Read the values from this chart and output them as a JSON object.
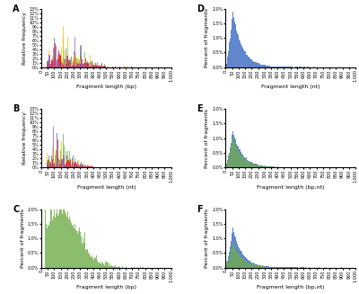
{
  "panels": {
    "A": {
      "label": "A",
      "ylabel": "Relative frequency",
      "xlabel": "Fragment length (bp)",
      "ylim": [
        0,
        0.13
      ],
      "yticks": [
        0.0,
        0.01,
        0.02,
        0.03,
        0.04,
        0.05,
        0.06,
        0.07,
        0.08,
        0.09,
        0.1,
        0.11,
        0.12,
        0.13
      ],
      "ytick_labels": [
        "0%",
        "1%",
        "2%",
        "3%",
        "4%",
        "5%",
        "6%",
        "7%",
        "8%",
        "9%",
        "10%",
        "11%",
        "12%",
        "13%"
      ],
      "colors": [
        "#4472C4",
        "#70AD47",
        "#FFC000",
        "#FF0000",
        "#9B59B6"
      ]
    },
    "B": {
      "label": "B",
      "ylabel": "Relative frequency",
      "xlabel": "Fragment length (nt)",
      "ylim": [
        0,
        0.13
      ],
      "yticks": [
        0.0,
        0.01,
        0.02,
        0.03,
        0.04,
        0.05,
        0.06,
        0.07,
        0.08,
        0.09,
        0.1,
        0.11,
        0.12,
        0.13
      ],
      "ytick_labels": [
        "0%",
        "1%",
        "2%",
        "3%",
        "4%",
        "5%",
        "6%",
        "7%",
        "8%",
        "9%",
        "10%",
        "11%",
        "12%",
        "13%"
      ],
      "colors": [
        "#4472C4",
        "#70AD47",
        "#FFC000",
        "#FF0000",
        "#9B59B6"
      ]
    },
    "C": {
      "label": "C",
      "ylabel": "Percent of fragments",
      "xlabel": "Fragment length (bp)",
      "ylim": [
        0,
        0.02
      ],
      "yticks": [
        0.0,
        0.005,
        0.01,
        0.015,
        0.02
      ],
      "ytick_labels": [
        "0.0%",
        "0.5%",
        "1.0%",
        "1.5%",
        "2.0%"
      ],
      "color": "#70AD47"
    },
    "D": {
      "label": "D",
      "ylabel": "Percent of fragments",
      "xlabel": "Fragment length (nt)",
      "ylim": [
        0,
        0.02
      ],
      "yticks": [
        0.0,
        0.005,
        0.01,
        0.015,
        0.02
      ],
      "ytick_labels": [
        "0.0%",
        "0.5%",
        "1.0%",
        "1.5%",
        "2.0%"
      ],
      "color": "#4472C4"
    },
    "E": {
      "label": "E",
      "ylabel": "Percent of fragments",
      "xlabel": "Fragment length (bp,nt)",
      "ylim": [
        0,
        0.02
      ],
      "yticks": [
        0.0,
        0.005,
        0.01,
        0.015,
        0.02
      ],
      "ytick_labels": [
        "0.0%",
        "0.5%",
        "1.0%",
        "1.5%",
        "2.0%"
      ],
      "colors": [
        "#4472C4",
        "#70AD47"
      ]
    },
    "F": {
      "label": "F",
      "ylabel": "Percent of fragments",
      "xlabel": "Fragment length (bp,nt)",
      "ylim": [
        0,
        0.02
      ],
      "yticks": [
        0.0,
        0.005,
        0.01,
        0.015,
        0.02
      ],
      "ytick_labels": [
        "0.0%",
        "0.5%",
        "1.0%",
        "1.5%",
        "2.0%"
      ],
      "colors": [
        "#4472C4",
        "#70AD47"
      ]
    }
  },
  "xtick_positions": [
    0,
    50,
    100,
    150,
    200,
    250,
    300,
    350,
    400,
    450,
    500,
    550,
    600,
    650,
    700,
    750,
    800,
    850,
    900,
    950,
    1000
  ],
  "xtick_labels": [
    "0",
    "50",
    "100",
    "150",
    "200",
    "250",
    "300",
    "350",
    "400",
    "450",
    "500",
    "550",
    "600",
    "650",
    "700",
    "750",
    "800",
    "850",
    "900",
    "950",
    "1,000"
  ],
  "panel_label_fontsize": 7,
  "axis_label_fontsize": 4.5,
  "tick_fontsize": 3.5,
  "background_color": "#FFFFFF"
}
